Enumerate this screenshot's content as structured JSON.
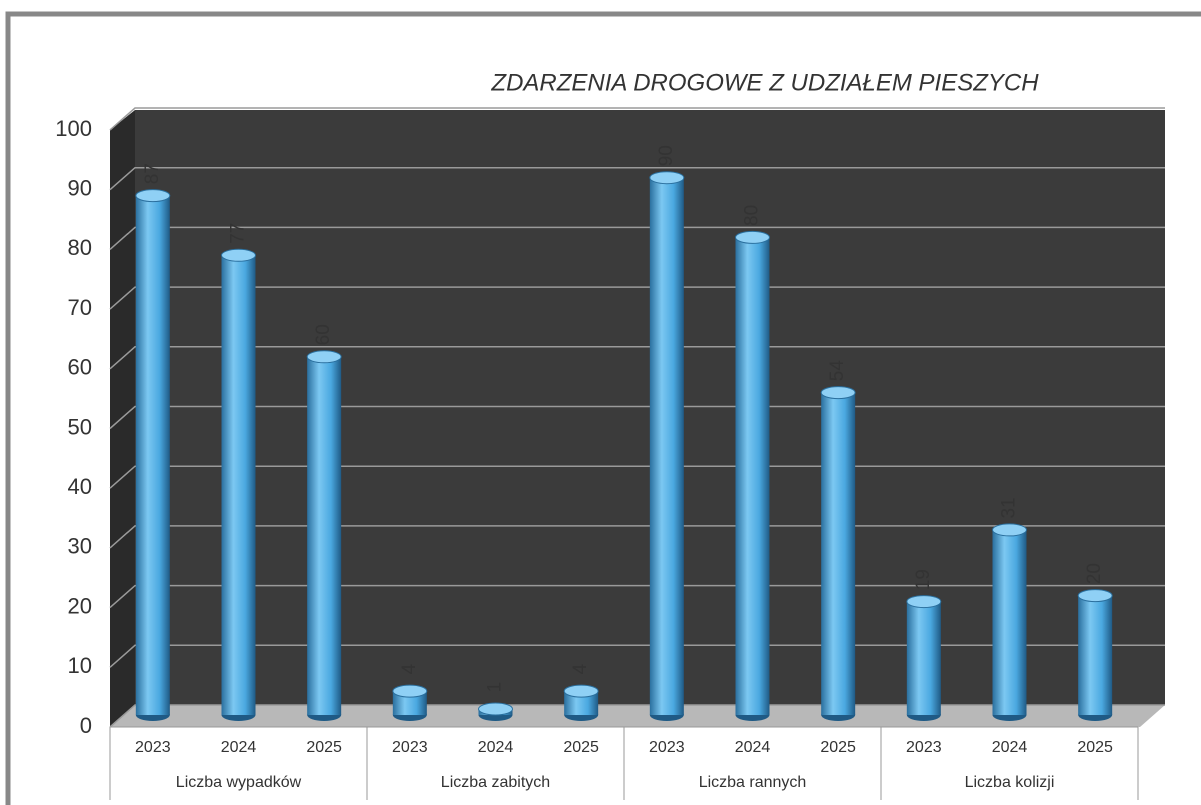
{
  "chart_data": {
    "type": "bar",
    "title": "ZDARZENIA DROGOWE Z UDZIAŁEM PIESZYCH",
    "color": "#4aa8e0",
    "groups": [
      {
        "name": "Liczba wypadków",
        "categories": [
          "2023",
          "2024",
          "2025"
        ],
        "values": [
          87,
          77,
          60
        ]
      },
      {
        "name": "Liczba zabitych",
        "categories": [
          "2023",
          "2024",
          "2025"
        ],
        "values": [
          4,
          1,
          4
        ]
      },
      {
        "name": "Liczba rannych",
        "categories": [
          "2023",
          "2024",
          "2025"
        ],
        "values": [
          90,
          80,
          54
        ]
      },
      {
        "name": "Liczba kolizji",
        "categories": [
          "2023",
          "2024",
          "2025"
        ],
        "values": [
          19,
          31,
          20
        ]
      }
    ],
    "ylim": [
      0,
      100
    ],
    "yticks": [
      0,
      10,
      20,
      30,
      40,
      50,
      60,
      70,
      80,
      90,
      100
    ],
    "grid": true
  }
}
